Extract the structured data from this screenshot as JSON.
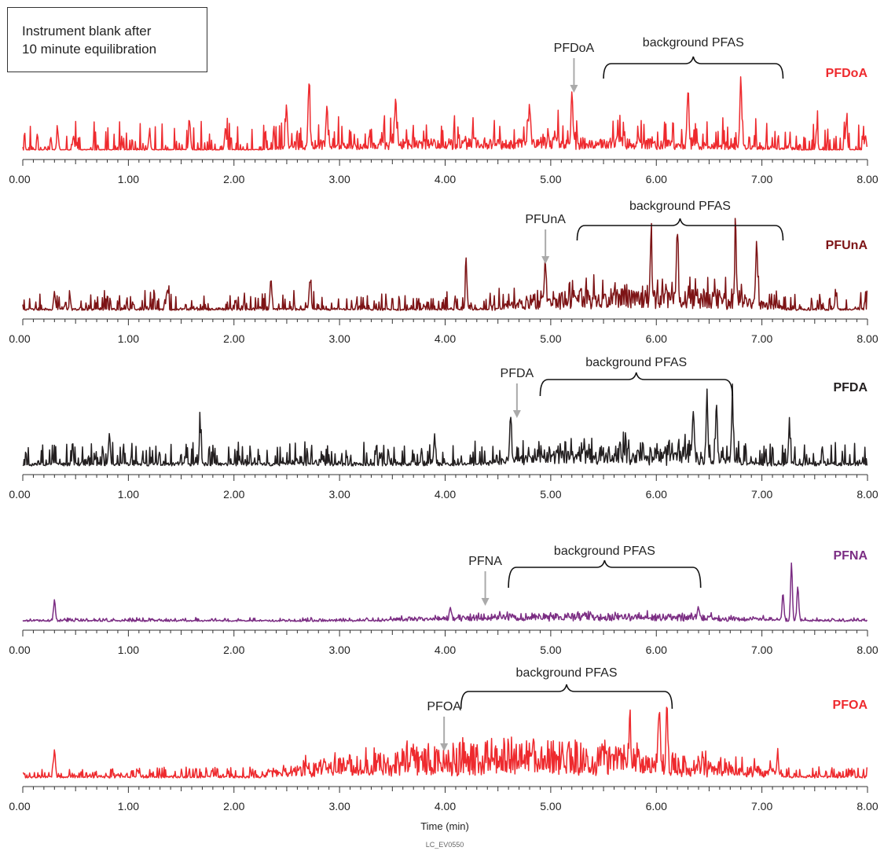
{
  "note": {
    "line1": "Instrument blank after",
    "line2": "10 minute equilibration"
  },
  "chart_data": [
    {
      "type": "line",
      "series": [
        {
          "name": "PFDoA",
          "color": "#ee2a2e"
        }
      ],
      "xlim": [
        0,
        8
      ],
      "tick_labels": [
        "0.00",
        "1.00",
        "2.00",
        "3.00",
        "4.00",
        "5.00",
        "6.00",
        "7.00",
        "8.00"
      ],
      "annotations": [
        {
          "text": "PFDoA",
          "x": 5.22,
          "kind": "arrow"
        },
        {
          "text": "background PFAS",
          "x_range": [
            5.5,
            7.2
          ],
          "kind": "bracket"
        }
      ],
      "noise": {
        "seed": 11,
        "base": 0.012,
        "spikeProb": 0.38,
        "spikeScale": 0.45,
        "bandStart": 2.3,
        "bandEnd": 7.3,
        "bandBoost": 0.12,
        "spikeFloor": 0.02
      },
      "peaks": [
        {
          "x": 0.33,
          "y": 0.3
        },
        {
          "x": 0.48,
          "y": 0.22
        },
        {
          "x": 1.2,
          "y": 0.25
        },
        {
          "x": 1.58,
          "y": 0.45
        },
        {
          "x": 1.92,
          "y": 0.35
        },
        {
          "x": 2.5,
          "y": 0.55
        },
        {
          "x": 2.71,
          "y": 1.0
        },
        {
          "x": 2.88,
          "y": 0.68
        },
        {
          "x": 3.53,
          "y": 0.7
        },
        {
          "x": 4.8,
          "y": 0.6
        },
        {
          "x": 5.2,
          "y": 0.8
        },
        {
          "x": 6.3,
          "y": 0.85
        },
        {
          "x": 6.8,
          "y": 1.1
        },
        {
          "x": 7.52,
          "y": 0.35
        },
        {
          "x": 7.8,
          "y": 0.45
        },
        {
          "x": 7.98,
          "y": 0.22
        }
      ]
    },
    {
      "type": "line",
      "series": [
        {
          "name": "PFUnA",
          "color": "#7d1416"
        }
      ],
      "xlim": [
        0,
        8
      ],
      "tick_labels": [
        "0.00",
        "1.00",
        "2.00",
        "3.00",
        "4.00",
        "5.00",
        "6.00",
        "7.00",
        "8.00"
      ],
      "annotations": [
        {
          "text": "PFUnA",
          "x": 4.95,
          "kind": "arrow"
        },
        {
          "text": "background PFAS",
          "x_range": [
            5.25,
            7.2
          ],
          "kind": "bracket"
        }
      ],
      "noise": {
        "seed": 23,
        "base": 0.03,
        "spikeProb": 0.45,
        "spikeScale": 0.28,
        "bandStart": 4.5,
        "bandEnd": 7.2,
        "bandBoost": 0.22,
        "spikeFloor": 0.0
      },
      "peaks": [
        {
          "x": 0.3,
          "y": 0.25
        },
        {
          "x": 1.37,
          "y": 0.3
        },
        {
          "x": 2.35,
          "y": 0.45
        },
        {
          "x": 2.72,
          "y": 0.45
        },
        {
          "x": 4.2,
          "y": 0.55
        },
        {
          "x": 4.95,
          "y": 0.6
        },
        {
          "x": 5.95,
          "y": 1.0
        },
        {
          "x": 6.2,
          "y": 1.05
        },
        {
          "x": 6.75,
          "y": 1.05
        },
        {
          "x": 6.95,
          "y": 0.9
        },
        {
          "x": 7.7,
          "y": 0.22
        }
      ]
    },
    {
      "type": "line",
      "series": [
        {
          "name": "PFDA",
          "color": "#231f20"
        }
      ],
      "xlim": [
        0,
        8
      ],
      "tick_labels": [
        "0.00",
        "1.00",
        "2.00",
        "3.00",
        "4.00",
        "5.00",
        "6.00",
        "7.00",
        "8.00"
      ],
      "annotations": [
        {
          "text": "PFDA",
          "x": 4.68,
          "kind": "arrow"
        },
        {
          "text": "background PFAS",
          "x_range": [
            4.9,
            6.72
          ],
          "kind": "bracket"
        }
      ],
      "noise": {
        "seed": 37,
        "base": 0.05,
        "spikeProb": 0.5,
        "spikeScale": 0.32,
        "bandStart": 4.4,
        "bandEnd": 6.8,
        "bandBoost": 0.15,
        "spikeFloor": 0.0
      },
      "peaks": [
        {
          "x": 0.82,
          "y": 0.45
        },
        {
          "x": 1.68,
          "y": 0.5
        },
        {
          "x": 3.9,
          "y": 0.4
        },
        {
          "x": 4.62,
          "y": 0.65
        },
        {
          "x": 6.35,
          "y": 0.7
        },
        {
          "x": 6.48,
          "y": 0.88
        },
        {
          "x": 6.57,
          "y": 0.85
        },
        {
          "x": 6.72,
          "y": 0.86
        },
        {
          "x": 7.26,
          "y": 0.55
        }
      ]
    },
    {
      "type": "line",
      "series": [
        {
          "name": "PFNA",
          "color": "#7b2d83"
        }
      ],
      "xlim": [
        0,
        8
      ],
      "tick_labels": [
        "0.00",
        "1.00",
        "2.00",
        "3.00",
        "4.00",
        "5.00",
        "6.00",
        "7.00",
        "8.00"
      ],
      "annotations": [
        {
          "text": "PFNA",
          "x": 4.38,
          "kind": "arrow"
        },
        {
          "text": "background PFAS",
          "x_range": [
            4.6,
            6.42
          ],
          "kind": "bracket"
        }
      ],
      "noise": {
        "seed": 51,
        "base": 0.018,
        "spikeProb": 0.55,
        "spikeScale": 0.045,
        "bandStart": 3.4,
        "bandEnd": 7.2,
        "bandBoost": 0.07,
        "spikeFloor": 0.0
      },
      "peaks": [
        {
          "x": 0.3,
          "y": 0.3
        },
        {
          "x": 4.05,
          "y": 0.15
        },
        {
          "x": 6.4,
          "y": 0.18
        },
        {
          "x": 7.2,
          "y": 0.38
        },
        {
          "x": 7.28,
          "y": 0.82
        },
        {
          "x": 7.34,
          "y": 0.5
        }
      ]
    },
    {
      "type": "line",
      "series": [
        {
          "name": "PFOA",
          "color": "#ee2a2e"
        }
      ],
      "xlim": [
        0,
        8
      ],
      "tick_labels": [
        "0.00",
        "1.00",
        "2.00",
        "3.00",
        "4.00",
        "5.00",
        "6.00",
        "7.00",
        "8.00"
      ],
      "xlabel": "Time (min)",
      "annotations": [
        {
          "text": "PFOA",
          "x": 3.99,
          "kind": "arrow"
        },
        {
          "text": "background PFAS",
          "x_range": [
            4.15,
            6.15
          ],
          "kind": "bracket"
        }
      ],
      "noise": {
        "seed": 67,
        "base": 0.025,
        "spikeProb": 0.6,
        "spikeScale": 0.14,
        "bandStart": 2.3,
        "bandEnd": 7.2,
        "bandBoost": 0.3,
        "spikeFloor": 0.0
      },
      "peaks": [
        {
          "x": 0.3,
          "y": 0.38
        },
        {
          "x": 2.85,
          "y": 0.15
        },
        {
          "x": 5.75,
          "y": 0.65
        },
        {
          "x": 6.03,
          "y": 0.85
        },
        {
          "x": 6.1,
          "y": 1.0
        },
        {
          "x": 7.15,
          "y": 0.25
        }
      ]
    }
  ],
  "footer_code": "LC_EV0550"
}
